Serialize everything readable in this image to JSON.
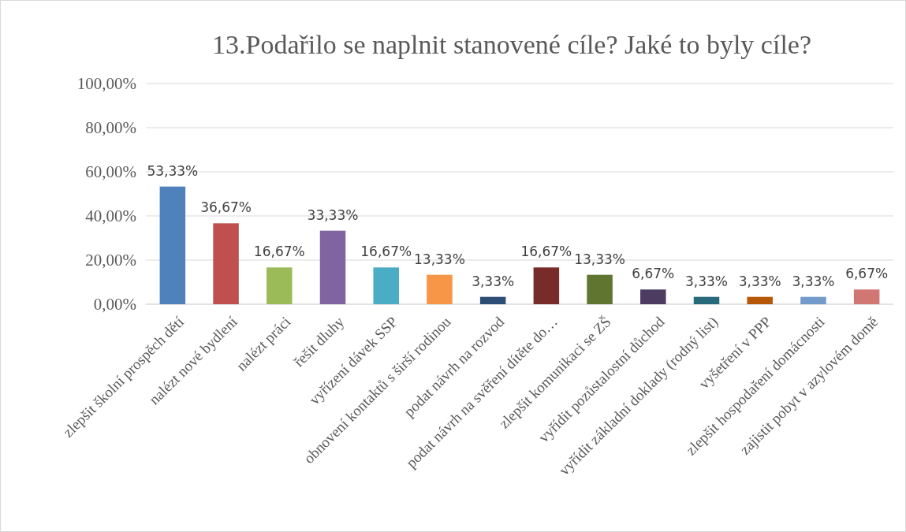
{
  "chart_data": {
    "type": "bar",
    "title": "13.Podařilo se naplnit stanovené cíle? Jaké to byly cíle?",
    "categories": [
      "zlepšit školní prospěch dětí",
      "nalézt nové bydlení",
      "nalézt práci",
      "řešit dluhy",
      "vyřízení dávek SSP",
      "obnovení kontaktů s širší rodinou",
      "podat návrh na rozvod",
      "podat návrh na svěření dítěte do…",
      "zlepšit komunikaci se ZŠ",
      "vyřídit pozůstalostní důchod",
      "vyřídit základní doklady (rodný list)",
      "vyšetření v PPP",
      "zlepšit hospodaření domácnosti",
      "zajistit pobyt v azylovém domě"
    ],
    "values": [
      53.33,
      36.67,
      16.67,
      33.33,
      16.67,
      13.33,
      3.33,
      16.67,
      13.33,
      6.67,
      3.33,
      3.33,
      3.33,
      6.67
    ],
    "value_labels": [
      "53,33%",
      "36,67%",
      "16,67%",
      "33,33%",
      "16,67%",
      "13,33%",
      "3,33%",
      "16,67%",
      "13,33%",
      "6,67%",
      "3,33%",
      "3,33%",
      "3,33%",
      "6,67%"
    ],
    "colors": [
      "#4f81bd",
      "#c0504d",
      "#9bbb59",
      "#8064a2",
      "#4bacc6",
      "#f79646",
      "#2c4d75",
      "#772c2a",
      "#5f7530",
      "#4d3b62",
      "#276a7c",
      "#b65708",
      "#729aca",
      "#d07673"
    ],
    "ylim": [
      0,
      100
    ],
    "yticks": [
      {
        "value": 0,
        "label": "0,00%"
      },
      {
        "value": 20,
        "label": "20,00%"
      },
      {
        "value": 40,
        "label": "40,00%"
      },
      {
        "value": 60,
        "label": "60,00%"
      },
      {
        "value": 80,
        "label": "80,00%"
      },
      {
        "value": 100,
        "label": "100,00%"
      }
    ],
    "grid": "y"
  }
}
